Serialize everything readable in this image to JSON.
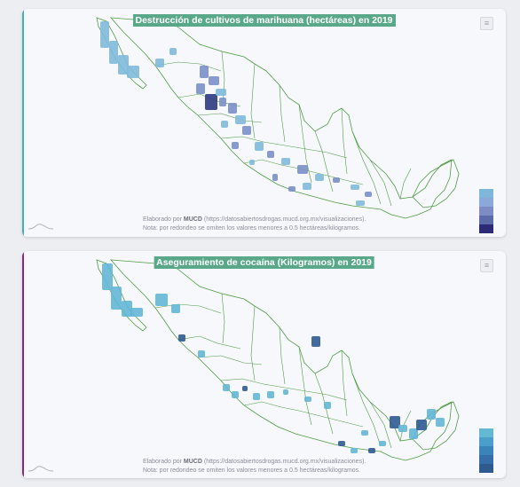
{
  "cards": [
    {
      "title": "Destrucción de cultivos de marihuana (hectáreas) en 2019",
      "title_bg": "#5aa88a",
      "accent": "#4aaeb8",
      "menu_icon": "≡",
      "credit_prefix": "Elaborado por ",
      "credit_org": "MUCD",
      "credit_rest": " (https://datosabiertosdrogas.mucd.org.mx/visualizaciones).",
      "note": "Nota: por redondeo se omiten los valores menores a 0.5 hectáreas/kilogramos.",
      "legend_colors": [
        "#7eb7da",
        "#8ba9d8",
        "#7d8dc4",
        "#5b6aa8",
        "#2d2a78"
      ]
    },
    {
      "title": "Aseguramiento de cocaína (Kilogramos) en 2019",
      "title_bg": "#5aa88a",
      "accent": "#8a2a7a",
      "menu_icon": "≡",
      "credit_prefix": "Elaborado por ",
      "credit_org": "MUCD",
      "credit_rest": " (https://datosabiertosdrogas.mucd.org.mx/visualizaciones).",
      "note": "Nota: por redondeo se omiten los valores menores a 0.5 hectáreas/kilogramos.",
      "legend_colors": [
        "#63b8d2",
        "#4a9ec9",
        "#3b84bb",
        "#356ea8",
        "#2d5a8f"
      ]
    }
  ],
  "colors": {
    "border": "#4f9a45",
    "light": "#7ebada",
    "mid": "#7a8fc8",
    "dark": "#2e3a80",
    "cocaine_light": "#62b6d6",
    "cocaine_dark": "#2f5a92"
  }
}
